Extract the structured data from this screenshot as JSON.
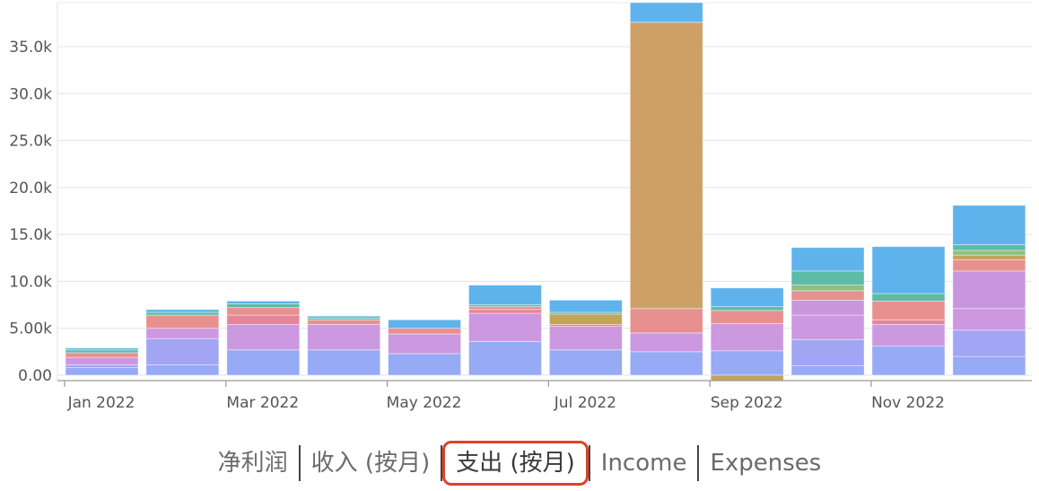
{
  "chart_data": {
    "type": "bar",
    "stacked": true,
    "categories": [
      "Jan 2022",
      "Feb 2022",
      "Mar 2022",
      "Apr 2022",
      "May 2022",
      "Jun 2022",
      "Jul 2022",
      "Aug 2022",
      "Sep 2022",
      "Oct 2022",
      "Nov 2022",
      "Dec 2022"
    ],
    "x_tick_labels": [
      "Jan 2022",
      "Mar 2022",
      "May 2022",
      "Jul 2022",
      "Sep 2022",
      "Nov 2022"
    ],
    "y_tick_labels": [
      "0.00",
      "5.00k",
      "10.0k",
      "15.0k",
      "20.0k",
      "25.0k",
      "30.0k",
      "35.0k"
    ],
    "y_ticks": [
      0,
      5000,
      10000,
      15000,
      20000,
      25000,
      30000,
      35000
    ],
    "ylim": [
      -600,
      39500
    ],
    "grid": true,
    "series": [
      {
        "color": "#96aaf5",
        "values": [
          800,
          1100,
          2700,
          2700,
          2300,
          3600,
          2700,
          2500,
          2600,
          1000,
          3100,
          2000
        ]
      },
      {
        "color": "#a2a4f4",
        "values": [
          300,
          2800,
          0,
          0,
          0,
          0,
          0,
          0,
          0,
          2800,
          0,
          2800
        ]
      },
      {
        "color": "#cc98e0",
        "values": [
          800,
          1100,
          2700,
          2700,
          2100,
          3000,
          2500,
          2000,
          2900,
          2600,
          2300,
          2300
        ]
      },
      {
        "color": "#c896dc",
        "values": [
          0,
          0,
          0,
          0,
          0,
          0,
          0,
          0,
          0,
          1600,
          0,
          4000
        ]
      },
      {
        "color": "#e6849a",
        "values": [
          0,
          0,
          1000,
          0,
          0,
          400,
          200,
          0,
          0,
          0,
          500,
          0
        ]
      },
      {
        "color": "#e89090",
        "values": [
          500,
          1400,
          800,
          500,
          600,
          300,
          0,
          2600,
          1400,
          1000,
          2000,
          1200
        ]
      },
      {
        "color": "#c5a35a",
        "values": [
          0,
          0,
          0,
          0,
          0,
          0,
          1100,
          0,
          -600,
          0,
          0,
          500
        ]
      },
      {
        "color": "#cfa065",
        "values": [
          0,
          0,
          0,
          0,
          0,
          0,
          0,
          30500,
          0,
          0,
          0,
          0
        ]
      },
      {
        "color": "#8cbf80",
        "values": [
          0,
          0,
          0,
          0,
          0,
          0,
          0,
          0,
          0,
          600,
          0,
          500
        ]
      },
      {
        "color": "#5cbca8",
        "values": [
          300,
          300,
          400,
          200,
          0,
          200,
          200,
          0,
          400,
          1500,
          800,
          600
        ]
      },
      {
        "color": "#5fb3ec",
        "values": [
          200,
          300,
          300,
          200,
          900,
          2100,
          1300,
          2100,
          2000,
          2500,
          5000,
          4200
        ]
      }
    ]
  },
  "tabs": [
    {
      "label": "净利润"
    },
    {
      "label": "收入 (按月)"
    },
    {
      "label": "支出 (按月)",
      "active": true
    },
    {
      "label": "Income"
    },
    {
      "label": "Expenses"
    }
  ]
}
